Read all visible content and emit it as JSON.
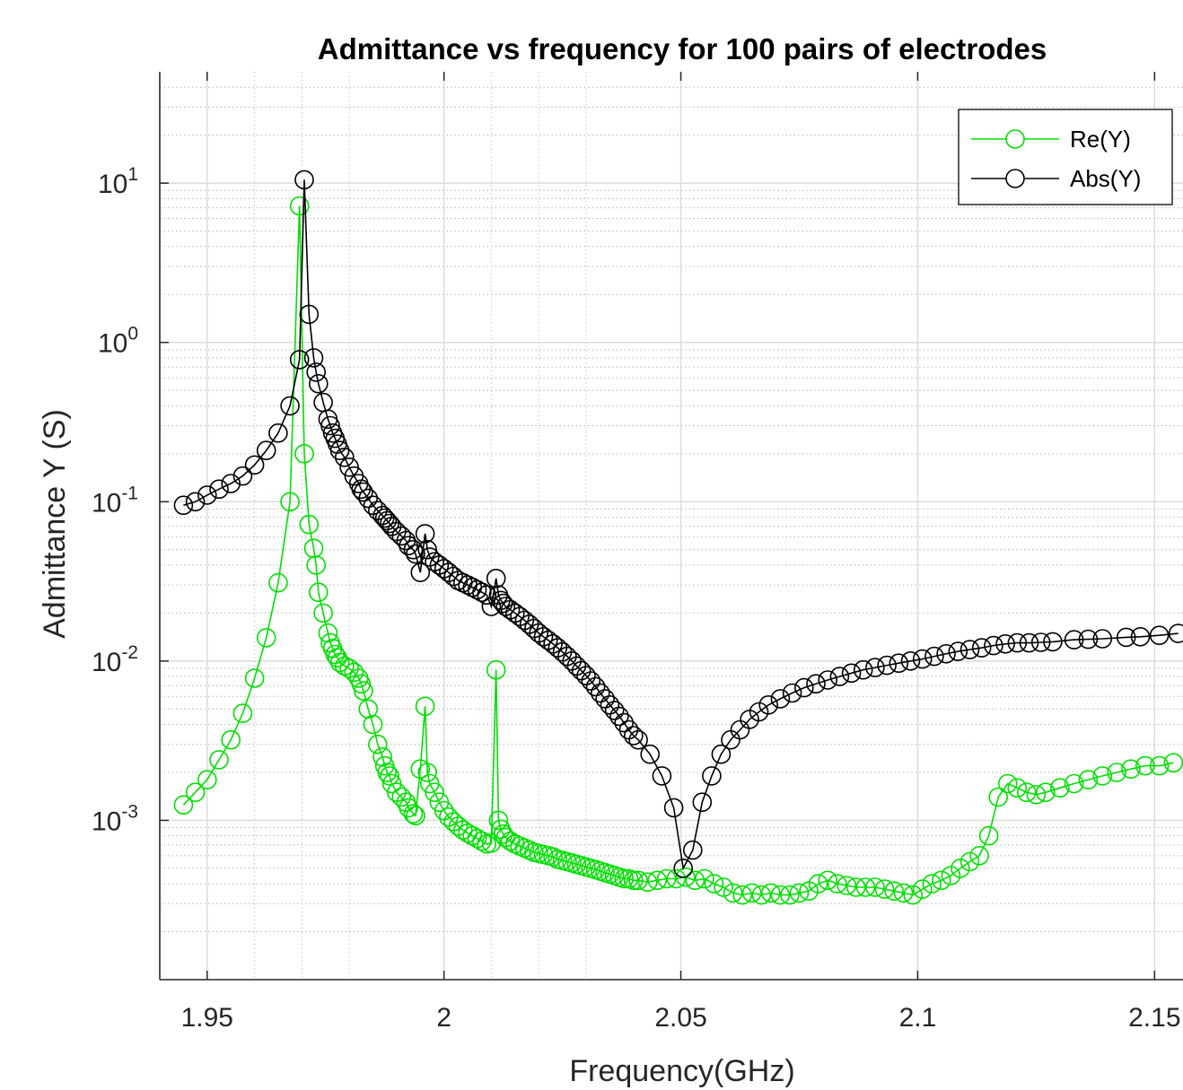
{
  "chart_data": {
    "type": "line",
    "title": "Admittance vs frequency for 100 pairs of electrodes",
    "xlabel": "Frequency(GHz)",
    "ylabel": "Admittance Y (S)",
    "xlim": [
      1.94,
      2.156
    ],
    "ylim": [
      0.0001,
      50
    ],
    "yscale": "log",
    "x_ticks": [
      1.95,
      2.0,
      2.05,
      2.1,
      2.15
    ],
    "x_tick_labels": [
      "1.95",
      "2",
      "2.05",
      "2.1",
      "2.15"
    ],
    "y_ticks": [
      {
        "value": 10,
        "base": "10",
        "exp": "1"
      },
      {
        "value": 1,
        "base": "10",
        "exp": "0"
      },
      {
        "value": 0.1,
        "base": "10",
        "exp": "-1"
      },
      {
        "value": 0.01,
        "base": "10",
        "exp": "-2"
      },
      {
        "value": 0.001,
        "base": "10",
        "exp": "-3"
      }
    ],
    "grid": true,
    "legend_position": "top-right",
    "series": [
      {
        "name": "Re(Y)",
        "color": "#00e000",
        "marker": "circle",
        "x": [
          1.945,
          1.9475,
          1.95,
          1.9525,
          1.955,
          1.9575,
          1.96,
          1.9625,
          1.965,
          1.9675,
          1.9695,
          1.9705,
          1.9715,
          1.9725,
          1.973,
          1.9735,
          1.9745,
          1.9755,
          1.976,
          1.9765,
          1.977,
          1.9775,
          1.978,
          1.979,
          1.98,
          1.981,
          1.982,
          1.9825,
          1.983,
          1.984,
          1.985,
          1.986,
          1.987,
          1.9875,
          1.988,
          1.9885,
          1.989,
          1.99,
          1.991,
          1.992,
          1.9925,
          1.9935,
          1.994,
          1.995,
          1.996,
          1.9965,
          1.997,
          1.998,
          1.999,
          2.0,
          2.001,
          2.002,
          2.003,
          2.004,
          2.005,
          2.006,
          2.007,
          2.008,
          2.009,
          2.01,
          2.011,
          2.0115,
          2.012,
          2.0125,
          2.013,
          2.014,
          2.015,
          2.016,
          2.017,
          2.018,
          2.019,
          2.02,
          2.021,
          2.022,
          2.023,
          2.024,
          2.025,
          2.026,
          2.027,
          2.028,
          2.029,
          2.03,
          2.031,
          2.032,
          2.033,
          2.034,
          2.035,
          2.036,
          2.037,
          2.038,
          2.039,
          2.04,
          2.041,
          2.043,
          2.045,
          2.047,
          2.049,
          2.051,
          2.053,
          2.055,
          2.057,
          2.059,
          2.061,
          2.063,
          2.065,
          2.067,
          2.069,
          2.071,
          2.073,
          2.075,
          2.077,
          2.079,
          2.081,
          2.083,
          2.085,
          2.087,
          2.089,
          2.091,
          2.093,
          2.095,
          2.097,
          2.099,
          2.101,
          2.103,
          2.105,
          2.107,
          2.109,
          2.111,
          2.113,
          2.115,
          2.117,
          2.119,
          2.121,
          2.123,
          2.125,
          2.127,
          2.13,
          2.133,
          2.136,
          2.139,
          2.142,
          2.145,
          2.148,
          2.151,
          2.154
        ],
        "values": [
          0.00125,
          0.0015,
          0.0018,
          0.0024,
          0.0032,
          0.0047,
          0.0078,
          0.014,
          0.031,
          0.1,
          7.2,
          0.2,
          0.072,
          0.051,
          0.04,
          0.027,
          0.02,
          0.015,
          0.013,
          0.012,
          0.011,
          0.0105,
          0.0098,
          0.0093,
          0.009,
          0.0085,
          0.0078,
          0.0072,
          0.0065,
          0.005,
          0.004,
          0.003,
          0.0025,
          0.0022,
          0.002,
          0.0019,
          0.0017,
          0.0015,
          0.0014,
          0.0013,
          0.0012,
          0.0011,
          0.00107,
          0.0021,
          0.0052,
          0.002,
          0.0017,
          0.0015,
          0.0013,
          0.00115,
          0.00105,
          0.00098,
          0.00092,
          0.00087,
          0.00083,
          0.0008,
          0.00077,
          0.00074,
          0.00071,
          0.00072,
          0.0088,
          0.001,
          0.00088,
          0.00082,
          0.00078,
          0.00074,
          0.00071,
          0.00069,
          0.00067,
          0.00065,
          0.00063,
          0.00062,
          0.00061,
          0.0006,
          0.00059,
          0.00057,
          0.00056,
          0.00055,
          0.00054,
          0.00053,
          0.00052,
          0.00051,
          0.0005,
          0.00049,
          0.00048,
          0.00047,
          0.00046,
          0.00045,
          0.00044,
          0.00043,
          0.00043,
          0.00042,
          0.00042,
          0.00041,
          0.00042,
          0.00043,
          0.00043,
          0.00044,
          0.00042,
          0.00043,
          0.0004,
          0.00038,
          0.00035,
          0.00034,
          0.00035,
          0.00034,
          0.00035,
          0.00034,
          0.00034,
          0.00035,
          0.00036,
          0.0004,
          0.00042,
          0.0004,
          0.00039,
          0.00038,
          0.00038,
          0.00038,
          0.00037,
          0.00036,
          0.00035,
          0.00034,
          0.00037,
          0.0004,
          0.00042,
          0.00045,
          0.0005,
          0.00055,
          0.0006,
          0.0008,
          0.0014,
          0.0017,
          0.0016,
          0.0015,
          0.00145,
          0.0015,
          0.0016,
          0.0017,
          0.0018,
          0.0019,
          0.002,
          0.0021,
          0.0022,
          0.0022,
          0.0023
        ]
      },
      {
        "name": "Abs(Y)",
        "color": "#000000",
        "marker": "circle",
        "x": [
          1.945,
          1.9475,
          1.95,
          1.9525,
          1.955,
          1.9575,
          1.96,
          1.9625,
          1.965,
          1.9675,
          1.9695,
          1.9705,
          1.9715,
          1.9725,
          1.973,
          1.9735,
          1.9745,
          1.9755,
          1.976,
          1.9765,
          1.977,
          1.9775,
          1.978,
          1.979,
          1.98,
          1.981,
          1.982,
          1.9825,
          1.983,
          1.984,
          1.985,
          1.986,
          1.987,
          1.9875,
          1.988,
          1.9885,
          1.989,
          1.99,
          1.991,
          1.992,
          1.9925,
          1.9935,
          1.994,
          1.995,
          1.996,
          1.9965,
          1.997,
          1.998,
          1.999,
          2.0,
          2.001,
          2.002,
          2.003,
          2.004,
          2.005,
          2.006,
          2.007,
          2.008,
          2.009,
          2.01,
          2.011,
          2.0115,
          2.012,
          2.0125,
          2.013,
          2.014,
          2.015,
          2.016,
          2.017,
          2.018,
          2.019,
          2.02,
          2.021,
          2.022,
          2.023,
          2.024,
          2.025,
          2.026,
          2.027,
          2.028,
          2.029,
          2.03,
          2.031,
          2.032,
          2.033,
          2.034,
          2.035,
          2.036,
          2.037,
          2.038,
          2.039,
          2.04,
          2.041,
          2.0435,
          2.046,
          2.0485,
          2.0505,
          2.0525,
          2.0545,
          2.0565,
          2.0585,
          2.0605,
          2.0625,
          2.0645,
          2.0665,
          2.0685,
          2.071,
          2.0735,
          2.076,
          2.0785,
          2.081,
          2.0835,
          2.086,
          2.0885,
          2.091,
          2.0935,
          2.096,
          2.0985,
          2.101,
          2.1035,
          2.106,
          2.1085,
          2.111,
          2.1135,
          2.116,
          2.1185,
          2.121,
          2.1235,
          2.126,
          2.1285,
          2.133,
          2.136,
          2.139,
          2.144,
          2.147,
          2.151,
          2.155
        ],
        "values": [
          0.095,
          0.1,
          0.11,
          0.12,
          0.13,
          0.145,
          0.17,
          0.21,
          0.27,
          0.4,
          0.78,
          10.5,
          1.5,
          0.8,
          0.65,
          0.55,
          0.42,
          0.33,
          0.3,
          0.27,
          0.25,
          0.23,
          0.21,
          0.19,
          0.165,
          0.145,
          0.13,
          0.12,
          0.115,
          0.105,
          0.095,
          0.088,
          0.082,
          0.079,
          0.076,
          0.073,
          0.07,
          0.065,
          0.061,
          0.057,
          0.053,
          0.05,
          0.047,
          0.036,
          0.063,
          0.05,
          0.045,
          0.042,
          0.04,
          0.038,
          0.036,
          0.034,
          0.032,
          0.031,
          0.03,
          0.029,
          0.028,
          0.027,
          0.026,
          0.022,
          0.033,
          0.026,
          0.024,
          0.023,
          0.022,
          0.021,
          0.02,
          0.019,
          0.018,
          0.017,
          0.016,
          0.015,
          0.0142,
          0.0135,
          0.0128,
          0.0121,
          0.0114,
          0.0107,
          0.01,
          0.0093,
          0.0087,
          0.0081,
          0.0075,
          0.0069,
          0.0063,
          0.0058,
          0.0053,
          0.0049,
          0.0045,
          0.0041,
          0.0037,
          0.0034,
          0.0032,
          0.0026,
          0.0019,
          0.0012,
          0.0005,
          0.00065,
          0.0013,
          0.0019,
          0.0026,
          0.0032,
          0.0037,
          0.0043,
          0.0048,
          0.0053,
          0.0058,
          0.0063,
          0.0068,
          0.0072,
          0.0076,
          0.008,
          0.0084,
          0.0088,
          0.0091,
          0.0094,
          0.0097,
          0.01,
          0.0103,
          0.0107,
          0.0111,
          0.0115,
          0.0118,
          0.0121,
          0.0125,
          0.0128,
          0.013,
          0.013,
          0.0131,
          0.0132,
          0.0136,
          0.0137,
          0.0138,
          0.0141,
          0.0142,
          0.0145,
          0.0149
        ]
      }
    ]
  }
}
